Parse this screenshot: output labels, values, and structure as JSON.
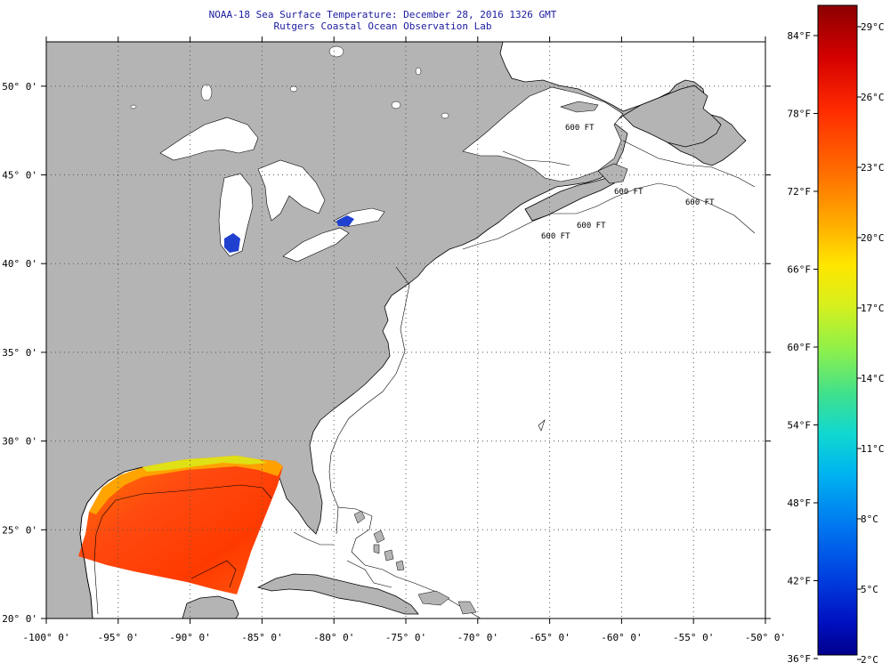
{
  "title": {
    "line1": "NOAA-18 Sea Surface Temperature:  December 28, 2016 1326 GMT",
    "line2": "Rutgers Coastal Ocean Observation Lab"
  },
  "map": {
    "lon_range": [
      -100,
      -50
    ],
    "lat_range": [
      20,
      52.5
    ],
    "lon_ticks": [
      -100,
      -95,
      -90,
      -85,
      -80,
      -75,
      -70,
      -65,
      -60,
      -55,
      -50
    ],
    "lat_ticks": [
      20,
      25,
      30,
      35,
      40,
      45,
      50
    ],
    "lon_labels": [
      "-100° 0'",
      "-95° 0'",
      "-90° 0'",
      "-85° 0'",
      "-80° 0'",
      "-75° 0'",
      "-70° 0'",
      "-65° 0'",
      "-60° 0'",
      "-55° 0'",
      "-50° 0'"
    ],
    "lat_labels": [
      "20° 0'",
      "25° 0'",
      "30° 0'",
      "35° 0'",
      "40° 0'",
      "45° 0'",
      "50° 0'"
    ],
    "land_color": "#b4b4b4",
    "ocean_color": "#ffffff",
    "grid": "dotted",
    "contour_labels": [
      "600 FT",
      "600 FT",
      "600 FT",
      "600 FT",
      "600 FT"
    ]
  },
  "colorbar": {
    "fahrenheit_labels": [
      "84°F",
      "78°F",
      "72°F",
      "66°F",
      "60°F",
      "54°F",
      "48°F",
      "42°F",
      "36°F"
    ],
    "celsius_labels": [
      "29°C",
      "26°C",
      "23°C",
      "20°C",
      "17°C",
      "14°C",
      "11°C",
      "8°C",
      "5°C",
      "2°C"
    ],
    "colors": [
      "#8b0000",
      "#d40000",
      "#ff2a00",
      "#ff7000",
      "#ffb000",
      "#ffe600",
      "#d8f01c",
      "#8ef04a",
      "#3ee08e",
      "#10d8d0",
      "#00b4f0",
      "#0078f0",
      "#0040e0",
      "#0010c0",
      "#00008b"
    ]
  }
}
